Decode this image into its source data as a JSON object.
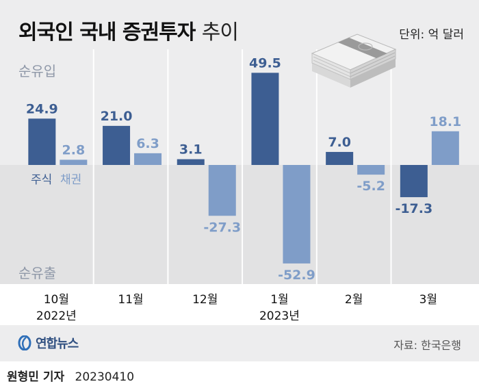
{
  "header": {
    "title_bold": "외국인 국내 증권투자",
    "title_light": "추이",
    "unit": "단위: 억 달러"
  },
  "labels": {
    "inflow": "순유입",
    "outflow": "순유출"
  },
  "legend": {
    "stock": "주식",
    "bond": "채권"
  },
  "footer": {
    "agency": "연합뉴스",
    "source": "자료: 한국은행",
    "reporter": "원형민 기자",
    "date": "20230410"
  },
  "colors": {
    "stock": "#3d5e92",
    "bond": "#7f9dc8",
    "background": "#ededee",
    "negative_band": "#e2e2e3"
  },
  "chart_data": {
    "type": "bar",
    "categories": [
      "10월",
      "11월",
      "12월",
      "1월",
      "2월",
      "3월"
    ],
    "category_years": [
      "2022년",
      "",
      "",
      "2023년",
      "",
      ""
    ],
    "series": [
      {
        "name": "주식",
        "values": [
          24.9,
          21.0,
          3.1,
          49.5,
          7.0,
          -17.3
        ]
      },
      {
        "name": "채권",
        "values": [
          2.8,
          6.3,
          -27.3,
          -52.9,
          -5.2,
          18.1
        ]
      }
    ],
    "value_labels": [
      [
        "24.9",
        "21.0",
        "3.1",
        "49.5",
        "7.0",
        "-17.3"
      ],
      [
        "2.8",
        "6.3",
        "-27.3",
        "-52.9",
        "-5.2",
        "18.1"
      ]
    ],
    "title": "외국인 국내 증권투자 추이",
    "ylabel": "단위: 억 달러",
    "ylim": [
      -60,
      60
    ],
    "grid": false,
    "legend": "inside-left"
  }
}
